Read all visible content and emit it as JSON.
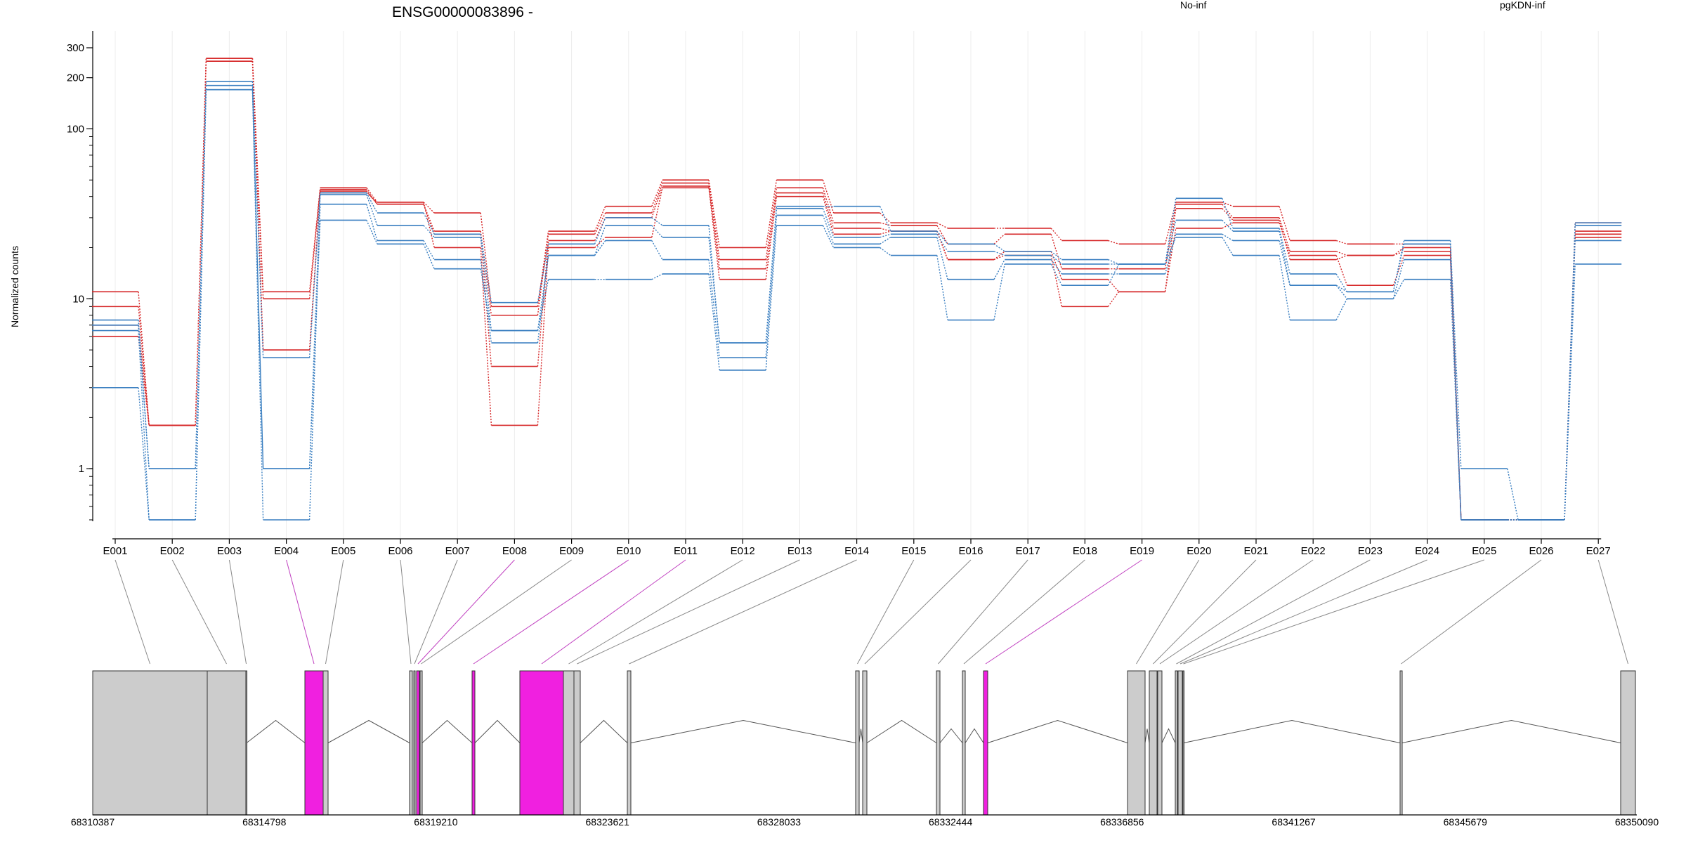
{
  "chart_data": {
    "type": "line",
    "title": "ENSG00000083896 -",
    "ylabel": "Normalized counts",
    "y_scale": "log",
    "ylim": [
      0.5,
      300
    ],
    "yticks": [
      1,
      10,
      100,
      200,
      300
    ],
    "grid": "vertical",
    "legend_placement": "top",
    "categories": [
      "E001",
      "E002",
      "E003",
      "E004",
      "E005",
      "E006",
      "E007",
      "E008",
      "E009",
      "E010",
      "E011",
      "E012",
      "E013",
      "E014",
      "E015",
      "E016",
      "E017",
      "E018",
      "E019",
      "E020",
      "E021",
      "E022",
      "E023",
      "E024",
      "E025",
      "E026",
      "E027"
    ],
    "groups": [
      {
        "name": "No-inf",
        "color": "#d62728"
      },
      {
        "name": "pgKDN-inf",
        "color": "#3a7fc1"
      }
    ],
    "series": [
      {
        "group": "No-inf",
        "values": [
          11,
          1.8,
          260,
          11,
          45,
          37,
          32,
          9,
          25,
          35,
          50,
          20,
          50,
          32,
          28,
          26,
          26,
          22,
          21,
          37,
          35,
          22,
          21,
          21,
          0.5,
          0.5,
          28
        ]
      },
      {
        "group": "No-inf",
        "values": [
          9,
          1.8,
          250,
          10,
          44,
          36,
          25,
          8,
          24,
          32,
          48,
          17,
          45,
          28,
          27,
          21,
          24,
          15,
          15,
          36,
          30,
          19,
          18,
          20,
          0.5,
          0.5,
          25
        ]
      },
      {
        "group": "No-inf",
        "values": [
          7,
          1.8,
          250,
          5,
          43,
          36,
          24,
          4,
          22,
          30,
          46,
          15,
          42,
          26,
          25,
          17,
          19,
          13,
          11,
          34,
          29,
          17,
          18,
          19,
          0.5,
          0.5,
          24
        ]
      },
      {
        "group": "No-inf",
        "values": [
          6,
          1.8,
          260,
          5,
          42,
          37,
          20,
          1.8,
          20,
          23,
          45,
          13,
          40,
          24,
          25,
          17,
          18,
          9,
          11,
          26,
          28,
          18,
          12,
          18,
          0.5,
          0.5,
          23
        ]
      },
      {
        "group": "pgKDN-inf",
        "values": [
          7.5,
          1,
          190,
          4.5,
          42,
          32,
          24,
          9.5,
          21,
          30,
          27,
          5.5,
          35,
          35,
          25,
          21,
          19,
          17,
          16,
          39,
          26,
          14,
          11,
          22,
          1,
          0.5,
          28
        ]
      },
      {
        "group": "pgKDN-inf",
        "values": [
          7,
          1,
          180,
          1,
          41,
          27,
          23,
          6.5,
          18,
          27,
          23,
          5.5,
          34,
          23,
          24,
          19,
          18,
          16,
          16,
          29,
          25,
          12,
          11,
          21,
          0.5,
          0.5,
          27
        ]
      },
      {
        "group": "pgKDN-inf",
        "values": [
          6.5,
          0.5,
          170,
          0.5,
          36,
          22,
          17,
          5.5,
          18,
          22,
          17,
          4.5,
          31,
          21,
          23,
          13,
          17,
          14,
          14,
          24,
          22,
          12,
          10,
          17,
          0.5,
          0.5,
          22
        ]
      },
      {
        "group": "pgKDN-inf",
        "values": [
          3,
          0.5,
          170,
          1,
          29,
          21,
          15,
          6.5,
          13,
          13,
          14,
          3.8,
          27,
          20,
          18,
          7.5,
          16,
          12,
          16,
          23,
          18,
          7.5,
          10,
          13,
          0.5,
          0.5,
          16
        ]
      }
    ],
    "gene_model": {
      "highlight_exons": [
        "E004",
        "E008",
        "E010",
        "E011",
        "E019"
      ],
      "exon_color": "#cccccc",
      "highlight_color": "#f020e0",
      "coordinate_ticks": [
        "68310387",
        "68314798",
        "68319210",
        "68323621",
        "68328033",
        "68332444",
        "68336856",
        "68341267",
        "68345679",
        "68350090"
      ]
    }
  }
}
